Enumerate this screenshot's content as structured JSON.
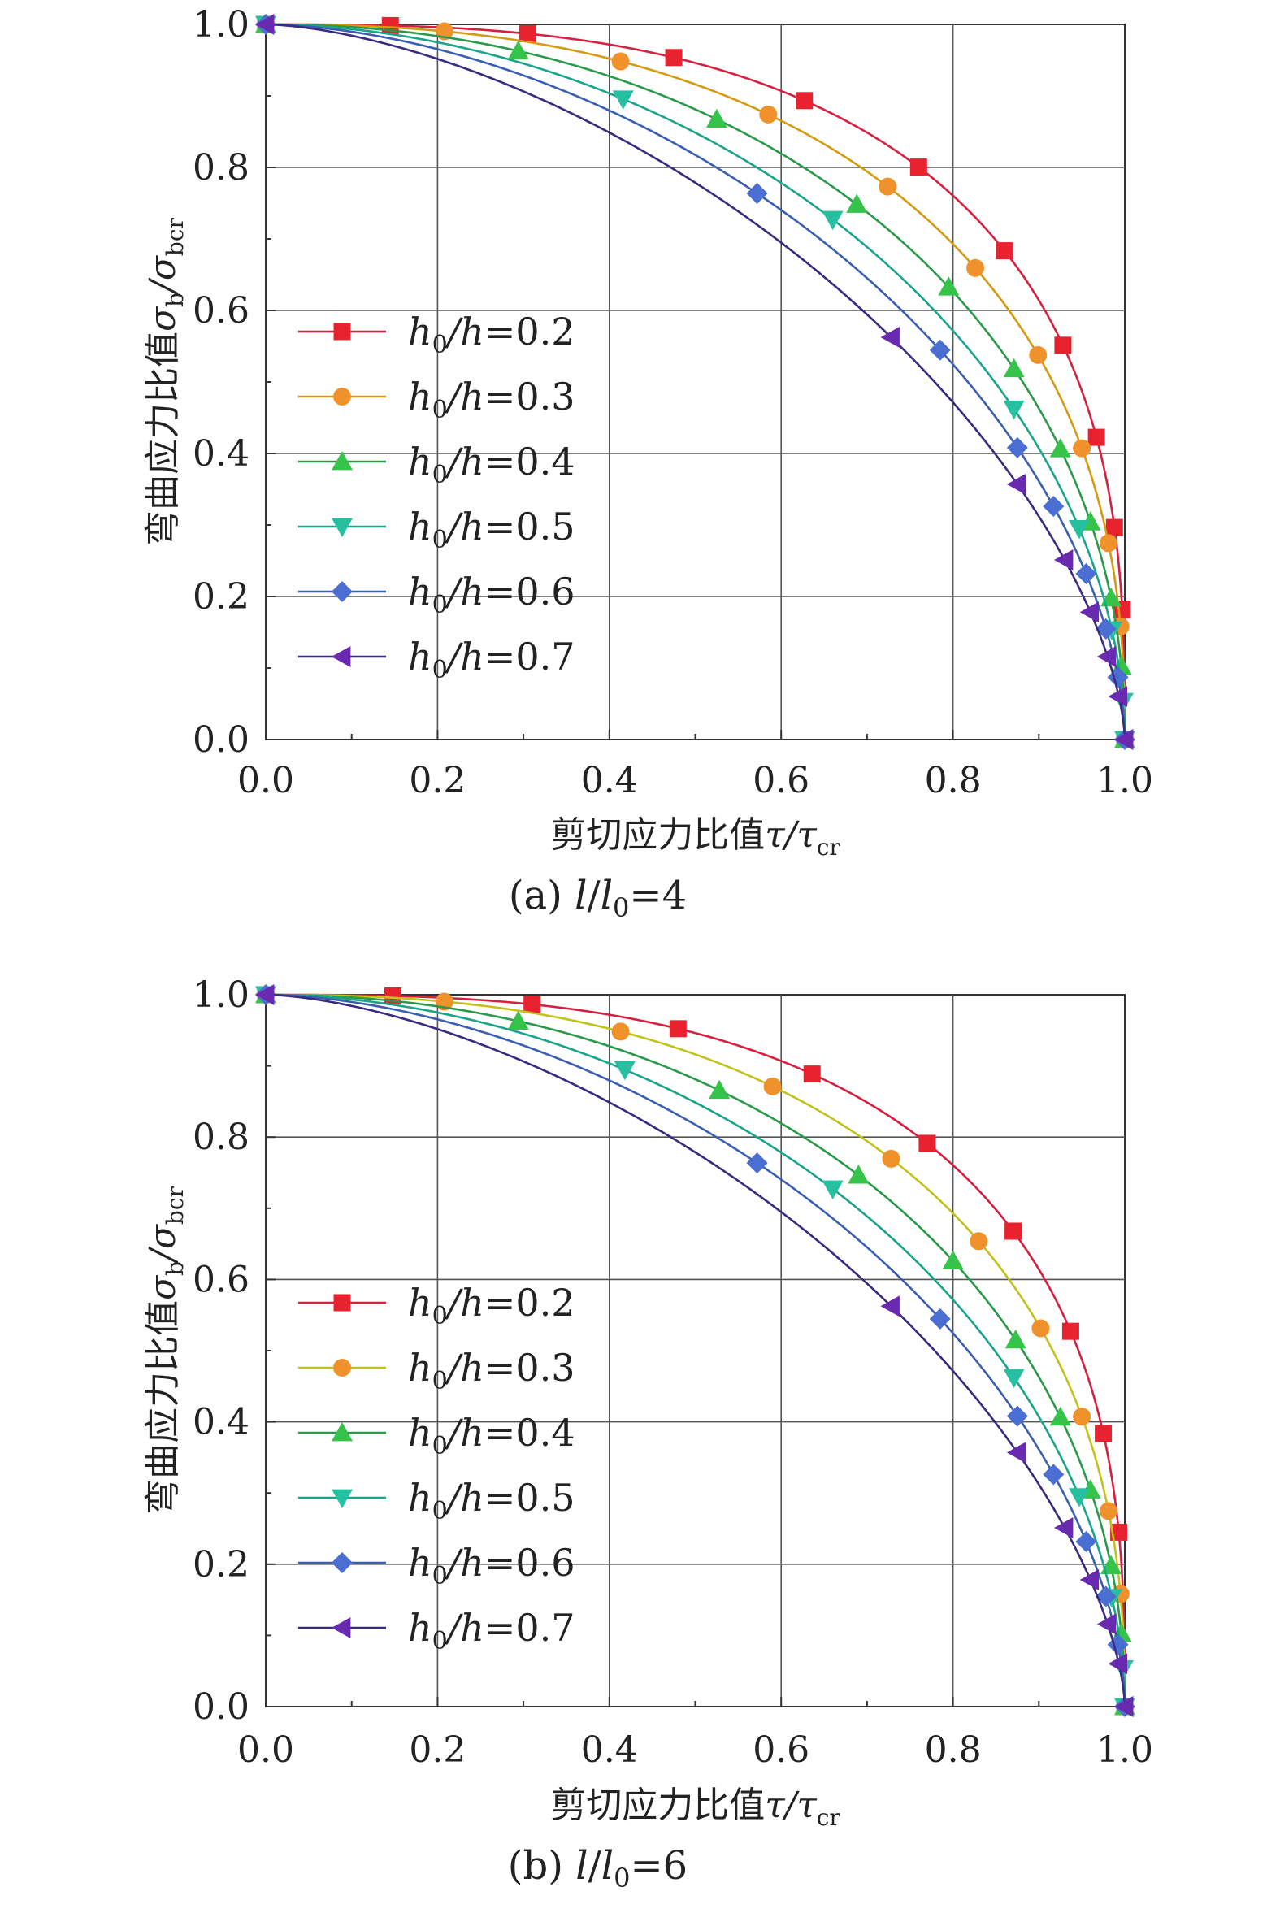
{
  "chart_data": [
    {
      "type": "line",
      "caption": "(a) l/l0=4",
      "caption_parts": {
        "prefix": "(a) ",
        "l": "l",
        "slash": "/",
        "l0_base": "l",
        "l0_sub": "0",
        "suffix": "=4"
      },
      "xlabel": {
        "text": "剪切应力比值τ/τcr",
        "main": "剪切应力比值",
        "sym": "τ/τ",
        "sub": "cr"
      },
      "ylabel": {
        "text": "弯曲应力比值σb/σbcr",
        "main": "弯曲应力比值",
        "sym1": "σ",
        "sub1": "b",
        "slash": "/σ",
        "sub2": "bcr"
      },
      "xlim": [
        0.0,
        1.0
      ],
      "ylim": [
        0.0,
        1.0
      ],
      "xticks": [
        "0.0",
        "0.2",
        "0.4",
        "0.6",
        "0.8",
        "1.0"
      ],
      "yticks": [
        "0.0",
        "0.2",
        "0.4",
        "0.6",
        "0.8",
        "1.0"
      ],
      "grid": true,
      "legend_position": "left",
      "series": [
        {
          "name": "h0/h=0.2",
          "color": "#d6203f",
          "marker_color": "#e8232f",
          "marker": "square",
          "exponent": 2.8,
          "markers_x": [
            0.0,
            0.145,
            0.305,
            0.475,
            0.627,
            0.76,
            0.86,
            0.928,
            0.967,
            0.988,
            0.997,
            1.0
          ]
        },
        {
          "name": "h0/h=0.3",
          "color": "#d49a10",
          "marker_color": "#f0922c",
          "marker": "circle",
          "exponent": 2.4,
          "markers_x": [
            0.0,
            0.208,
            0.413,
            0.585,
            0.724,
            0.826,
            0.899,
            0.95,
            0.981,
            0.995,
            1.0
          ]
        },
        {
          "name": "h0/h=0.4",
          "color": "#2a9a4a",
          "marker_color": "#36c34a",
          "marker": "triangle-up",
          "exponent": 2.1,
          "markers_x": [
            0.0,
            0.294,
            0.525,
            0.688,
            0.795,
            0.871,
            0.925,
            0.96,
            0.984,
            0.996,
            1.0
          ]
        },
        {
          "name": "h0/h=0.5",
          "color": "#1aa48c",
          "marker_color": "#26c0a0",
          "marker": "triangle-down",
          "exponent": 1.9,
          "markers_x": [
            0.0,
            0.416,
            0.66,
            0.871,
            0.947,
            0.985,
            0.998,
            1.0
          ]
        },
        {
          "name": "h0/h=0.6",
          "color": "#3a5fb0",
          "marker_color": "#4a6ed2",
          "marker": "diamond",
          "exponent": 1.75,
          "markers_x": [
            0.0,
            0.572,
            0.785,
            0.875,
            0.917,
            0.955,
            0.978,
            0.992,
            1.0
          ]
        },
        {
          "name": "h0/h=0.7",
          "color": "#3a2a80",
          "marker_color": "#6a2ab0",
          "marker": "triangle-left",
          "exponent": 1.6,
          "markers_x": [
            0.0,
            0.728,
            0.875,
            0.93,
            0.96,
            0.98,
            0.993,
            1.0
          ]
        }
      ]
    },
    {
      "type": "line",
      "caption": "(b) l/l0=6",
      "caption_parts": {
        "prefix": "(b) ",
        "l": "l",
        "slash": "/",
        "l0_base": "l",
        "l0_sub": "0",
        "suffix": "=6"
      },
      "xlabel": {
        "text": "剪切应力比值τ/τcr",
        "main": "剪切应力比值",
        "sym": "τ/τ",
        "sub": "cr"
      },
      "ylabel": {
        "text": "弯曲应力比值σb/σbcr",
        "main": "弯曲应力比值",
        "sym1": "σ",
        "sub1": "b",
        "slash": "/σ",
        "sub2": "bcr"
      },
      "xlim": [
        0.0,
        1.0
      ],
      "ylim": [
        0.0,
        1.0
      ],
      "xticks": [
        "0.0",
        "0.2",
        "0.4",
        "0.6",
        "0.8",
        "1.0"
      ],
      "yticks": [
        "0.0",
        "0.2",
        "0.4",
        "0.6",
        "0.8",
        "1.0"
      ],
      "grid": true,
      "legend_position": "left",
      "series": [
        {
          "name": "h0/h=0.2",
          "color": "#d6203f",
          "marker_color": "#e8232f",
          "marker": "square",
          "exponent": 2.8,
          "markers_x": [
            0.0,
            0.148,
            0.31,
            0.48,
            0.636,
            0.77,
            0.87,
            0.937,
            0.975,
            0.993,
            1.0
          ]
        },
        {
          "name": "h0/h=0.3",
          "color": "#c2c21a",
          "marker_color": "#f0922c",
          "marker": "circle",
          "exponent": 2.4,
          "markers_x": [
            0.0,
            0.208,
            0.413,
            0.59,
            0.728,
            0.83,
            0.902,
            0.95,
            0.981,
            0.995,
            1.0
          ]
        },
        {
          "name": "h0/h=0.4",
          "color": "#2a9a4a",
          "marker_color": "#36c34a",
          "marker": "triangle-up",
          "exponent": 2.1,
          "markers_x": [
            0.0,
            0.294,
            0.528,
            0.69,
            0.8,
            0.873,
            0.925,
            0.96,
            0.984,
            0.996,
            1.0
          ]
        },
        {
          "name": "h0/h=0.5",
          "color": "#1aa48c",
          "marker_color": "#26c0a0",
          "marker": "triangle-down",
          "exponent": 1.9,
          "markers_x": [
            0.0,
            0.418,
            0.66,
            0.871,
            0.947,
            0.985,
            0.998,
            1.0
          ]
        },
        {
          "name": "h0/h=0.6",
          "color": "#3a5fb0",
          "marker_color": "#4a6ed2",
          "marker": "diamond",
          "exponent": 1.75,
          "markers_x": [
            0.0,
            0.572,
            0.785,
            0.875,
            0.917,
            0.955,
            0.978,
            0.992,
            1.0
          ]
        },
        {
          "name": "h0/h=0.7",
          "color": "#3a2a80",
          "marker_color": "#6a2ab0",
          "marker": "triangle-left",
          "exponent": 1.6,
          "markers_x": [
            0.0,
            0.728,
            0.875,
            0.93,
            0.96,
            0.98,
            0.993,
            1.0
          ]
        }
      ]
    }
  ]
}
